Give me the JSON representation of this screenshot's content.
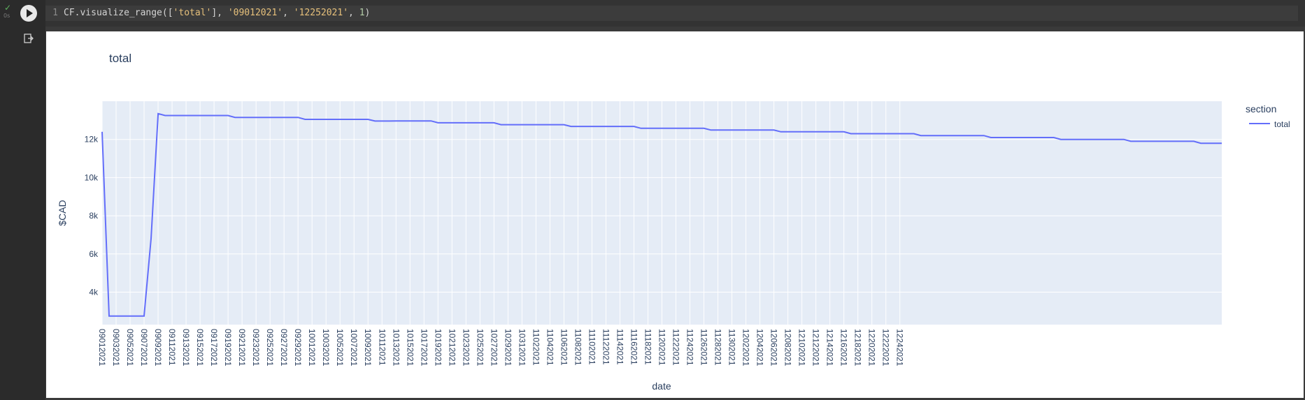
{
  "cell": {
    "line_number": "1",
    "code_tokens": [
      {
        "t": "CF.visualize_range([",
        "c": ""
      },
      {
        "t": "'total'",
        "c": "str"
      },
      {
        "t": "], ",
        "c": ""
      },
      {
        "t": "'09012021'",
        "c": "str"
      },
      {
        "t": ", ",
        "c": ""
      },
      {
        "t": "'12252021'",
        "c": "str"
      },
      {
        "t": ", ",
        "c": ""
      },
      {
        "t": "1",
        "c": "num"
      },
      {
        "t": ")",
        "c": ""
      }
    ],
    "status_icon": "check-icon",
    "run_icon": "play-icon",
    "output_icon": "output-exit-icon"
  },
  "chart_data": {
    "type": "line",
    "title": "total",
    "xlabel": "date",
    "ylabel": "$CAD",
    "ylim": [
      2300,
      14000
    ],
    "yticks": [
      4000,
      6000,
      8000,
      10000,
      12000
    ],
    "ytick_labels": [
      "4k",
      "6k",
      "8k",
      "10k",
      "12k"
    ],
    "legend_title": "section",
    "legend_position": "right",
    "plot_bg": "#e5ecf6",
    "line_color": "#636efa",
    "tick_labels": [
      "09012021",
      "09032021",
      "09052021",
      "09072021",
      "09092021",
      "09112021",
      "09132021",
      "09152021",
      "09172021",
      "09192021",
      "09212021",
      "09232021",
      "09252021",
      "09272021",
      "09292021",
      "10012021",
      "10032021",
      "10052021",
      "10072021",
      "10092021",
      "10112021",
      "10132021",
      "10152021",
      "10172021",
      "10192021",
      "10212021",
      "10232021",
      "10252021",
      "10272021",
      "10292021",
      "10312021",
      "11022021",
      "11042021",
      "11062021",
      "11082021",
      "11102021",
      "11122021",
      "11142021",
      "11162021",
      "11182021",
      "11202021",
      "11222021",
      "11242021",
      "11262021",
      "11282021",
      "11302021",
      "12022021",
      "12042021",
      "12062021",
      "12082021",
      "12102021",
      "12122021",
      "12142021",
      "12162021",
      "12182021",
      "12202021",
      "12222021",
      "12242021"
    ],
    "series": [
      {
        "name": "total",
        "x_start": "09012021",
        "values": [
          12400,
          2750,
          2750,
          2750,
          2750,
          2750,
          2750,
          6800,
          13350,
          13250,
          13250,
          13250,
          13250,
          13250,
          13250,
          13250,
          13250,
          13250,
          13250,
          13150,
          13150,
          13150,
          13150,
          13150,
          13150,
          13150,
          13150,
          13150,
          13150,
          13050,
          13050,
          13050,
          13050,
          13050,
          13050,
          13050,
          13050,
          13050,
          13050,
          12960,
          12960,
          12960,
          12970,
          12970,
          12970,
          12970,
          12970,
          12970,
          12870,
          12870,
          12870,
          12870,
          12870,
          12870,
          12870,
          12870,
          12870,
          12770,
          12770,
          12770,
          12770,
          12770,
          12770,
          12770,
          12770,
          12770,
          12770,
          12680,
          12680,
          12680,
          12680,
          12680,
          12680,
          12680,
          12680,
          12680,
          12680,
          12580,
          12580,
          12580,
          12580,
          12580,
          12580,
          12580,
          12580,
          12580,
          12580,
          12490,
          12490,
          12490,
          12490,
          12490,
          12490,
          12490,
          12490,
          12490,
          12490,
          12400,
          12400,
          12400,
          12400,
          12400,
          12400,
          12400,
          12400,
          12400,
          12400,
          12300,
          12300,
          12300,
          12300,
          12300,
          12300,
          12300,
          12300,
          12300,
          12300,
          12200,
          12200,
          12200,
          12200,
          12200,
          12200,
          12200,
          12200,
          12200,
          12200,
          12100,
          12100,
          12100,
          12100,
          12100,
          12100,
          12100,
          12100,
          12100,
          12100,
          12000,
          12000,
          12000,
          12000,
          12000,
          12000,
          12000,
          12000,
          12000,
          12000,
          11900,
          11900,
          11900,
          11900,
          11900,
          11900,
          11900,
          11900,
          11900,
          11900,
          11800,
          11800,
          11800,
          11800
        ]
      }
    ]
  }
}
